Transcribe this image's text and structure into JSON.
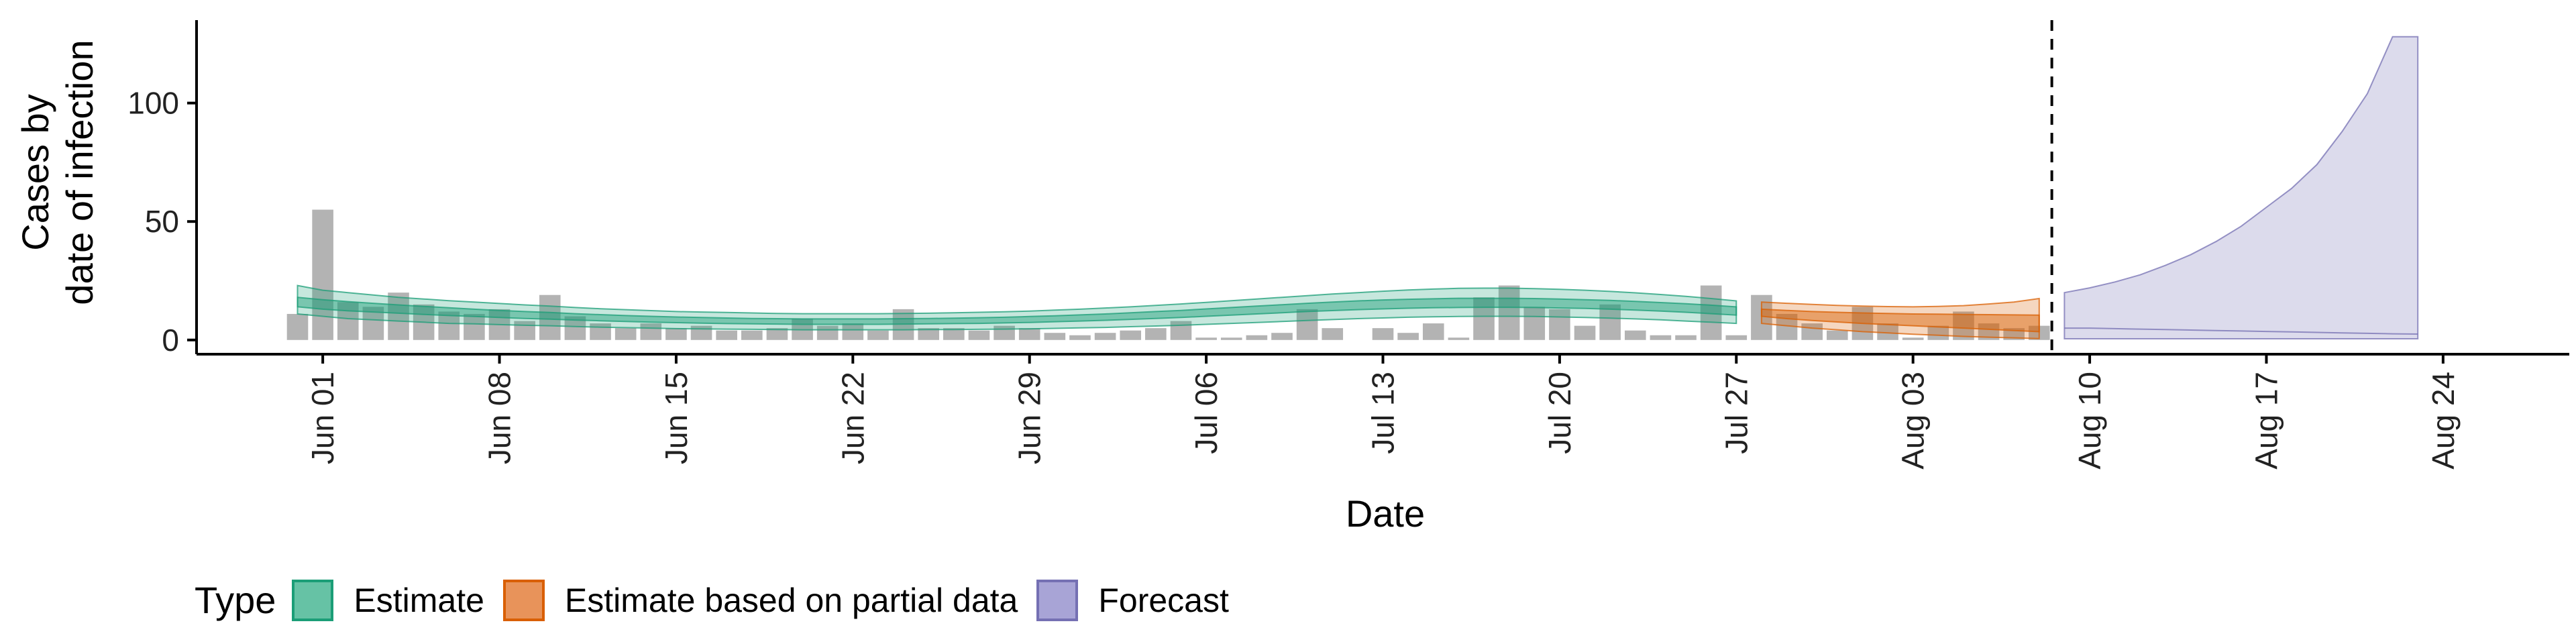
{
  "chart_data": {
    "type": "bar",
    "xlabel": "Date",
    "ylabel_lines": [
      "Cases by",
      "date of infection"
    ],
    "ylim": [
      -6,
      135
    ],
    "y_ticks": [
      0,
      50,
      100
    ],
    "x_start": "2020-05-27",
    "x_ticks": [
      "2020-06-01",
      "2020-06-08",
      "2020-06-15",
      "2020-06-22",
      "2020-06-29",
      "2020-07-06",
      "2020-07-13",
      "2020-07-20",
      "2020-07-27",
      "2020-08-03",
      "2020-08-10",
      "2020-08-17",
      "2020-08-24"
    ],
    "x_tick_labels": [
      "Jun 01",
      "Jun 08",
      "Jun 15",
      "Jun 22",
      "Jun 29",
      "Jul 06",
      "Jul 13",
      "Jul 20",
      "Jul 27",
      "Aug 03",
      "Aug 10",
      "Aug 17",
      "Aug 24"
    ],
    "forecast_date": "2020-08-08",
    "reported_cases": {
      "start_date": "2020-05-31",
      "values": [
        11,
        55,
        16,
        14,
        20,
        15,
        12,
        11,
        13,
        8,
        19,
        10,
        7,
        5,
        7,
        5,
        6,
        4,
        4,
        5,
        9,
        6,
        7,
        4,
        13,
        5,
        5,
        4,
        6,
        5,
        3,
        2,
        3,
        4,
        5,
        8,
        1,
        1,
        2,
        3,
        13,
        5,
        0,
        5,
        3,
        7,
        1,
        18,
        23,
        14,
        13,
        6,
        15,
        4,
        2,
        2,
        23,
        2,
        19,
        11,
        7,
        4,
        14,
        7,
        1,
        6,
        12,
        7,
        5,
        6
      ]
    },
    "series": [
      {
        "name": "Estimate",
        "start_date": "2020-05-31",
        "lower90": [
          11,
          10,
          9,
          8.5,
          8,
          7.5,
          7,
          6.8,
          6.5,
          6.2,
          6,
          5.7,
          5.4,
          5.2,
          5,
          4.8,
          4.7,
          4.6,
          4.5,
          4.4,
          4.3,
          4.3,
          4.3,
          4.3,
          4.3,
          4.4,
          4.4,
          4.5,
          4.6,
          4.7,
          4.9,
          5.1,
          5.3,
          5.6,
          5.9,
          6.2,
          6.6,
          7,
          7.4,
          7.8,
          8.2,
          8.6,
          9,
          9.3,
          9.6,
          9.8,
          9.9,
          10,
          10,
          9.9,
          9.7,
          9.5,
          9.2,
          8.9,
          8.5,
          8,
          7.5,
          7
        ],
        "lower50": [
          14,
          13,
          12.3,
          11.8,
          11.3,
          10.8,
          10.3,
          9.9,
          9.5,
          9.1,
          8.8,
          8.4,
          8.1,
          7.8,
          7.5,
          7.3,
          7.1,
          6.9,
          6.8,
          6.7,
          6.6,
          6.6,
          6.6,
          6.6,
          6.7,
          6.8,
          6.9,
          7,
          7.2,
          7.4,
          7.7,
          8,
          8.3,
          8.7,
          9.1,
          9.5,
          10,
          10.5,
          11,
          11.5,
          12,
          12.4,
          12.8,
          13.1,
          13.4,
          13.6,
          13.7,
          13.8,
          13.8,
          13.7,
          13.5,
          13.3,
          13,
          12.6,
          12.2,
          11.7,
          11.1,
          10.5
        ],
        "upper50": [
          18,
          17,
          16.2,
          15.5,
          14.8,
          14.2,
          13.6,
          13,
          12.5,
          12,
          11.6,
          11.1,
          10.7,
          10.3,
          10,
          9.7,
          9.5,
          9.3,
          9.1,
          9,
          8.9,
          8.9,
          8.9,
          8.9,
          9,
          9.1,
          9.2,
          9.4,
          9.6,
          9.9,
          10.2,
          10.6,
          11,
          11.5,
          12,
          12.5,
          13.1,
          13.7,
          14.3,
          14.9,
          15.5,
          16,
          16.5,
          16.9,
          17.2,
          17.4,
          17.6,
          17.6,
          17.6,
          17.5,
          17.3,
          17,
          16.7,
          16.3,
          15.8,
          15.3,
          14.7,
          14
        ],
        "upper90": [
          23,
          21,
          20,
          19,
          18,
          17.3,
          16.6,
          16,
          15.4,
          14.8,
          14.3,
          13.7,
          13.2,
          12.8,
          12.4,
          12,
          11.8,
          11.6,
          11.4,
          11.2,
          11.1,
          11.1,
          11.1,
          11.1,
          11.2,
          11.3,
          11.5,
          11.7,
          11.9,
          12.2,
          12.6,
          13,
          13.5,
          14,
          14.6,
          15.2,
          15.9,
          16.6,
          17.3,
          18,
          18.7,
          19.4,
          20,
          20.6,
          21.1,
          21.5,
          21.8,
          21.9,
          21.9,
          21.7,
          21.4,
          21,
          20.5,
          19.9,
          19.2,
          18.4,
          17.5,
          16.5
        ]
      },
      {
        "name": "Estimate based on partial data",
        "start_date": "2020-07-28",
        "lower90": [
          7,
          6,
          5,
          4.3,
          3.5,
          3,
          2.4,
          2,
          1.5,
          1.2,
          0.9,
          0.6
        ],
        "lower50": [
          10,
          9,
          8.2,
          7.6,
          7,
          6.5,
          6,
          5.5,
          5,
          4.5,
          4,
          3.5
        ],
        "upper50": [
          13,
          12.5,
          12,
          11.7,
          11.4,
          11.2,
          11,
          10.9,
          10.8,
          10.7,
          10.6,
          10.5
        ],
        "upper90": [
          16,
          15.5,
          15,
          14.6,
          14.3,
          14.1,
          14,
          14.2,
          14.5,
          15.2,
          16,
          17.5
        ]
      },
      {
        "name": "Forecast",
        "start_date": "2020-08-09",
        "lower90": [
          0.5,
          0.5,
          0.5,
          0.5,
          0.5,
          0.5,
          0.5,
          0.5,
          0.5,
          0.5,
          0.5,
          0.5,
          0.5,
          0.5,
          0.5
        ],
        "lower50": [
          5,
          5,
          4.8,
          4.6,
          4.4,
          4.2,
          4,
          3.8,
          3.6,
          3.4,
          3.2,
          3,
          2.8,
          2.6,
          2.5
        ],
        "upper50": [
          5,
          5,
          4.8,
          4.6,
          4.4,
          4.2,
          4,
          3.8,
          3.6,
          3.4,
          3.2,
          3,
          2.8,
          2.6,
          2.5
        ],
        "upper90": [
          20,
          22,
          24.5,
          27.5,
          31.5,
          36,
          41.5,
          48,
          56,
          64,
          74,
          88,
          104,
          128,
          128
        ]
      }
    ],
    "legend": {
      "position": "bottom-left",
      "title": "Type",
      "items": [
        "Estimate",
        "Estimate based on partial data",
        "Forecast"
      ]
    },
    "grid": false
  },
  "colors": {
    "bars": "#b3b3b3",
    "estimate_fill": "#1b9e77",
    "estimate_legend": "#66c2a5",
    "partial_fill": "#d95f02",
    "partial_legend": "#e8935a",
    "forecast_fill": "#7570b3",
    "forecast_legend": "#a8a4d6",
    "axis": "#000000",
    "tick_text": "#222222"
  }
}
